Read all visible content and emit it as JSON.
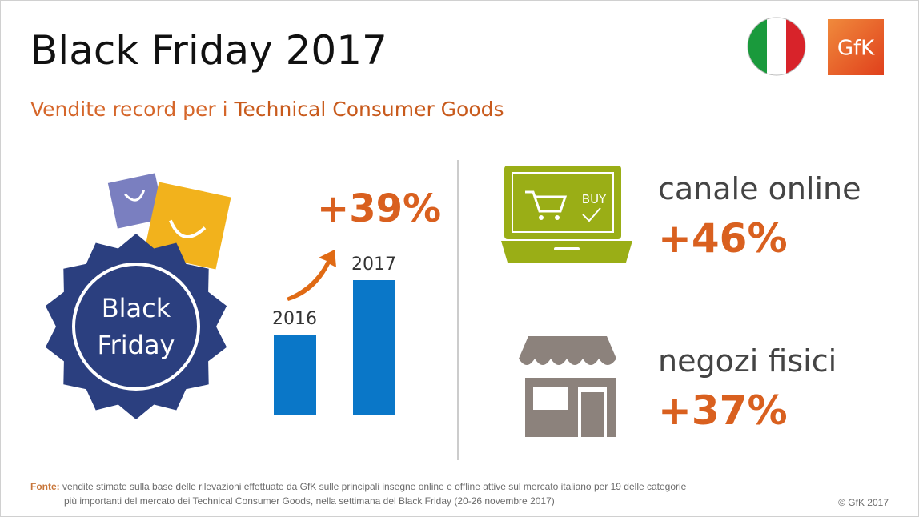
{
  "header": {
    "title": "Black Friday 2017",
    "subtitle_lead": "Vendite record per i",
    "subtitle_strong": "Technical Consumer Goods",
    "logo": "GfK"
  },
  "badge": {
    "line1": "Black",
    "line2": "Friday"
  },
  "growth": {
    "total": "+39%",
    "years": [
      "2016",
      "2017"
    ]
  },
  "channels": [
    {
      "label": "canale online",
      "value": "+46%",
      "icon_text": "BUY"
    },
    {
      "label": "negozi fisici",
      "value": "+37%"
    }
  ],
  "footer": {
    "source_label": "Fonte:",
    "source_line1": "vendite stimate sulla base delle rilevazioni effettuate da GfK sulle principali insegne online e offline attive sul mercato italiano per 19 delle categorie",
    "source_line2": "più importanti del mercato dei Technical Consumer Goods, nella settimana del Black Friday (20-26 novembre 2017)",
    "copyright": "© GfK 2017"
  }
}
